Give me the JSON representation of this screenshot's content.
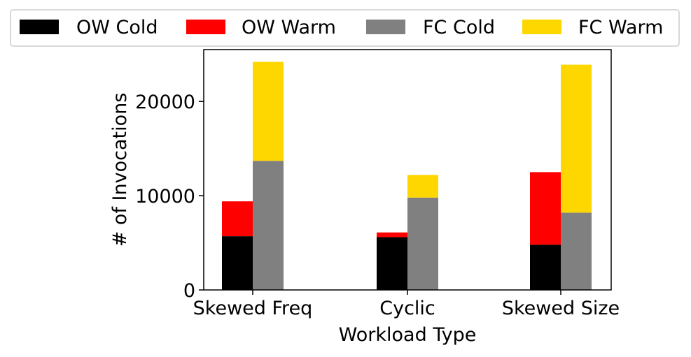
{
  "chart_data": {
    "type": "bar",
    "stacked": true,
    "grouped": true,
    "xlabel": "Workload Type",
    "ylabel": "# of Invocations",
    "ylim": [
      0,
      25500
    ],
    "yticks": [
      0,
      10000,
      20000
    ],
    "categories": [
      "Skewed Freq",
      "Cyclic",
      "Skewed Size"
    ],
    "groups": [
      {
        "name": "OW",
        "series": [
          {
            "name": "OW Cold",
            "color": "#000000",
            "values": [
              5700,
              5600,
              4800
            ]
          },
          {
            "name": "OW Warm",
            "color": "#ff0000",
            "values": [
              3700,
              500,
              7700
            ]
          }
        ]
      },
      {
        "name": "FC",
        "series": [
          {
            "name": "FC Cold",
            "color": "#808080",
            "values": [
              13700,
              9800,
              8200
            ]
          },
          {
            "name": "FC Warm",
            "color": "#ffd700",
            "values": [
              10500,
              2400,
              15700
            ]
          }
        ]
      }
    ],
    "legend": {
      "position": "top",
      "entries": [
        "OW Cold",
        "OW Warm",
        "FC Cold",
        "FC Warm"
      ]
    },
    "grid": false
  }
}
